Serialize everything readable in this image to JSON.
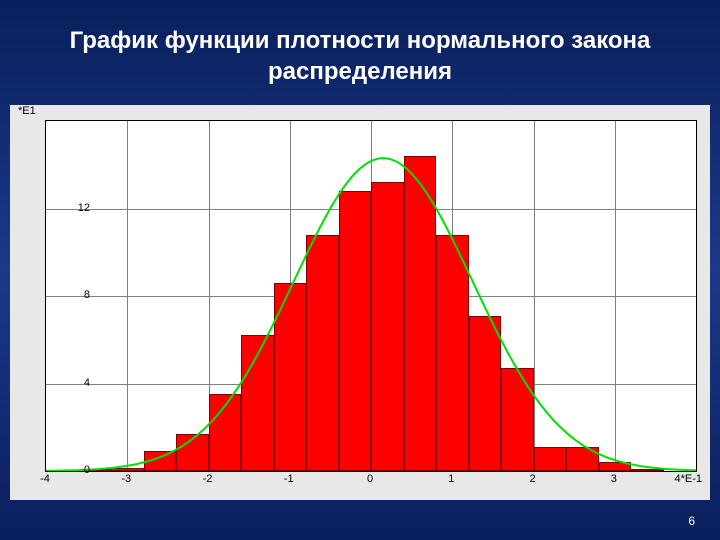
{
  "title": "График функции плотности нормального закона распределения",
  "slide_number": "6",
  "chart": {
    "type": "histogram_with_curve",
    "background_color": "#e8e8e8",
    "plot_background": "#ffffff",
    "grid_color": "#808080",
    "border_color": "#000000",
    "bar_fill": "#ff0000",
    "bar_border": "#800000",
    "curve_color": "#00e000",
    "curve_width": 2,
    "xlim": [
      -4,
      4
    ],
    "ylim": [
      0,
      16
    ],
    "x_ticks": [
      -4,
      -3,
      -2,
      -1,
      0,
      1,
      2,
      3
    ],
    "x_exp_label": "4*E-1",
    "y_ticks": [
      0,
      4,
      8,
      12
    ],
    "y_exp_label": "*E1",
    "bar_half_width": 0.2,
    "bars": [
      {
        "x": -3.4,
        "y": 0.1
      },
      {
        "x": -3.0,
        "y": 0.15
      },
      {
        "x": -2.6,
        "y": 0.9
      },
      {
        "x": -2.2,
        "y": 1.7
      },
      {
        "x": -1.8,
        "y": 3.5
      },
      {
        "x": -1.4,
        "y": 6.2
      },
      {
        "x": -1.0,
        "y": 8.6
      },
      {
        "x": -0.6,
        "y": 10.8
      },
      {
        "x": -0.2,
        "y": 12.8
      },
      {
        "x": 0.2,
        "y": 13.2
      },
      {
        "x": 0.6,
        "y": 14.4
      },
      {
        "x": 1.0,
        "y": 10.8
      },
      {
        "x": 1.4,
        "y": 7.1
      },
      {
        "x": 1.8,
        "y": 4.7
      },
      {
        "x": 2.2,
        "y": 1.1
      },
      {
        "x": 2.6,
        "y": 1.1
      },
      {
        "x": 3.0,
        "y": 0.4
      },
      {
        "x": 3.4,
        "y": 0.1
      }
    ],
    "curve_peak": 14.3,
    "curve_mean": 0.15,
    "curve_sd": 1.1
  }
}
